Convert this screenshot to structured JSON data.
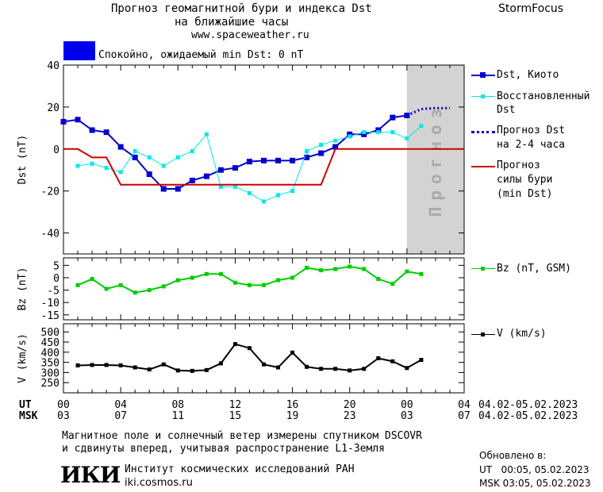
{
  "header": {
    "title_line1": "Прогноз геомагнитной бури и индекса Dst",
    "title_line2": "на ближайшие часы",
    "site": "www.spaceweather.ru",
    "brand": "StormFocus"
  },
  "status": {
    "text": "Спокойно, ожидаемый min Dst: 0 nT",
    "color": "#0000ee"
  },
  "legend": {
    "dst_kyoto": "Dst, Киото",
    "reconstructed_line1": "Восстановленный",
    "reconstructed_line2": "Dst",
    "forecast_dst_line1": "Прогноз Dst",
    "forecast_dst_line2": "на 2-4 часа",
    "storm_line1": "Прогноз",
    "storm_line2": "силы бури",
    "storm_line3": "(min Dst)",
    "bz": "Bz (nT, GSM)",
    "v": "V (km/s)"
  },
  "chart_data": [
    {
      "type": "line",
      "panel": "dst",
      "ylabel": "Dst (nT)",
      "ylim": [
        -50,
        40
      ],
      "yticks": [
        40,
        20,
        0,
        -20,
        -40
      ],
      "forecast_band_label": "Прогноз",
      "forecast_band_xrange": [
        24,
        28
      ],
      "series": [
        {
          "name": "Dst, Киото",
          "color": "#0000cc",
          "x": [
            0,
            1,
            2,
            3,
            4,
            5,
            6,
            7,
            8,
            9,
            10,
            11,
            12,
            13,
            14,
            15,
            16,
            17,
            18,
            19,
            20,
            21,
            22,
            23,
            24
          ],
          "values": [
            13,
            14,
            9,
            8,
            1,
            -4,
            -12,
            -19,
            -19,
            -15,
            -13,
            -10,
            -9,
            -6,
            -5.5,
            -5.5,
            -5.5,
            -4,
            -2,
            1,
            7,
            7,
            9,
            15,
            16
          ]
        },
        {
          "name": "Восстановленный Dst",
          "color": "#00e8e8",
          "x": [
            0,
            1,
            2,
            3,
            4,
            5,
            6,
            7,
            8,
            9,
            10,
            11,
            12,
            13,
            14,
            15,
            16,
            17,
            18,
            19,
            20,
            21,
            22,
            23,
            24,
            25
          ],
          "values": [
            null,
            -8,
            -7,
            -9,
            -11,
            -1,
            -4,
            -8,
            -4,
            -1,
            7,
            -18,
            -18,
            -21,
            -25,
            -22,
            -20,
            -1,
            2,
            4,
            6,
            8,
            8,
            8,
            5,
            11
          ]
        },
        {
          "name": "Прогноз Dst на 2-4 часа",
          "color": "#0000cc",
          "dotted": true,
          "x": [
            24,
            25,
            26,
            27
          ],
          "values": [
            16,
            19,
            19.5,
            19.5
          ]
        },
        {
          "name": "Прогноз силы бури (min Dst)",
          "color": "#cc0000",
          "step": true,
          "x": [
            0,
            1,
            2,
            3,
            4,
            5,
            6,
            7,
            8,
            9,
            10,
            11,
            12,
            13,
            14,
            15,
            16,
            17,
            18,
            19,
            20,
            21,
            22,
            23,
            24,
            25,
            26,
            27,
            28
          ],
          "values": [
            0,
            0,
            -4,
            -4,
            -17,
            -17,
            -17,
            -17,
            -17,
            -17,
            -17,
            -17,
            -17,
            -17,
            -17,
            -17,
            -17,
            -17,
            -17,
            0,
            0,
            0,
            0,
            0,
            0,
            0,
            0,
            0,
            0
          ]
        }
      ]
    },
    {
      "type": "line",
      "panel": "bz",
      "ylabel": "Bz (nT)",
      "ylim": [
        -17,
        8
      ],
      "yticks": [
        5,
        0,
        -5,
        -10,
        -15
      ],
      "series": [
        {
          "name": "Bz (nT, GSM)",
          "color": "#00cc00",
          "x": [
            1,
            2,
            3,
            4,
            5,
            6,
            7,
            8,
            9,
            10,
            11,
            12,
            13,
            14,
            15,
            16,
            17,
            18,
            19,
            20,
            21,
            22,
            23,
            24,
            25
          ],
          "values": [
            -3,
            -0.5,
            -4.5,
            -3,
            -6,
            -5,
            -3.5,
            -1,
            0,
            1.5,
            1.5,
            -2,
            -3,
            -3,
            -1,
            0,
            4,
            3,
            3.5,
            4.5,
            3.5,
            -0.5,
            -2.5,
            2.5,
            1.5
          ]
        }
      ]
    },
    {
      "type": "line",
      "panel": "v",
      "ylabel": "V (km/s)",
      "ylim": [
        200,
        540
      ],
      "yticks": [
        500,
        450,
        400,
        350,
        300,
        250
      ],
      "series": [
        {
          "name": "V (km/s)",
          "color": "#000000",
          "x": [
            1,
            2,
            3,
            4,
            5,
            6,
            7,
            8,
            9,
            10,
            11,
            12,
            13,
            14,
            15,
            16,
            17,
            18,
            19,
            20,
            21,
            22,
            23,
            24,
            25
          ],
          "values": [
            335,
            337,
            337,
            335,
            325,
            315,
            340,
            310,
            308,
            312,
            345,
            440,
            420,
            340,
            325,
            398,
            328,
            318,
            318,
            310,
            318,
            370,
            355,
            322,
            362
          ]
        }
      ]
    }
  ],
  "xaxis": {
    "ut_label": "UT",
    "msk_label": "MSK",
    "ut_ticks": [
      "00",
      "04",
      "08",
      "12",
      "16",
      "20",
      "00",
      "04"
    ],
    "msk_ticks": [
      "03",
      "07",
      "11",
      "15",
      "19",
      "23",
      "03",
      "07"
    ],
    "date_range_ut": "04.02-05.02.2023",
    "date_range_msk": "04.02-05.02.2023"
  },
  "footer": {
    "note_line1": "Магнитное поле и солнечный ветер измерены спутником DSCOVR",
    "note_line2": "и сдвинуты вперед, учитывая распространение L1-Земля",
    "logo": "ИКИ",
    "institute": "Институт космических исследований РАН",
    "institute_site": "iki.cosmos.ru",
    "updated_label": "Обновлено в:",
    "updated_ut": "UT   00:05, 05.02.2023",
    "updated_msk": "MSK 03:05, 05.02.2023"
  }
}
